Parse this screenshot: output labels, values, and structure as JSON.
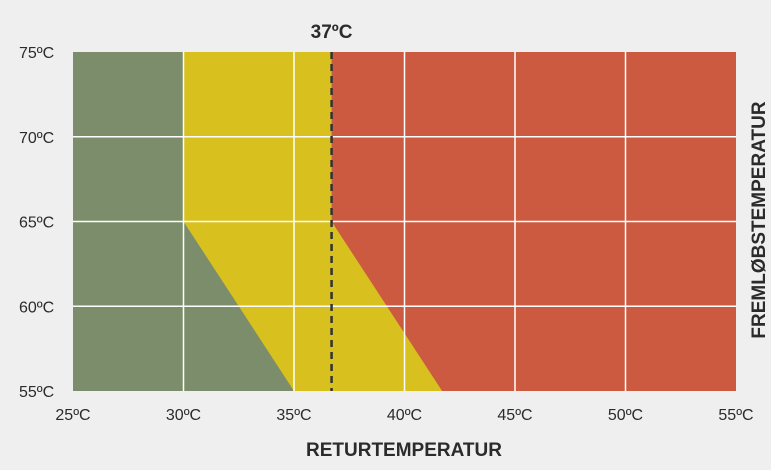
{
  "chart_data": {
    "type": "area",
    "title": "",
    "xlabel": "RETURTEMPERATUR",
    "ylabel": "FREMLØBSTEMPERATUR",
    "xlim": [
      25,
      55
    ],
    "ylim": [
      55,
      75
    ],
    "x_ticks": [
      25,
      30,
      35,
      40,
      45,
      50,
      55
    ],
    "y_ticks": [
      55,
      60,
      65,
      70,
      75
    ],
    "x_tick_labels": [
      "25ºC",
      "30ºC",
      "35ºC",
      "40ºC",
      "45ºC",
      "50ºC",
      "55ºC"
    ],
    "y_tick_labels": [
      "55ºC",
      "60ºC",
      "65ºC",
      "70ºC",
      "75ºC"
    ],
    "grid": true,
    "regions": [
      {
        "color": "#7b8d6b",
        "points": [
          [
            25,
            55
          ],
          [
            25,
            75
          ],
          [
            55,
            75
          ],
          [
            55,
            55
          ]
        ]
      },
      {
        "color": "#d8c11e",
        "points": [
          [
            30,
            75
          ],
          [
            30,
            65
          ],
          [
            35,
            55
          ],
          [
            55,
            55
          ],
          [
            55,
            75
          ]
        ]
      },
      {
        "color": "#cb5a41",
        "points": [
          [
            36.7,
            75
          ],
          [
            36.7,
            65
          ],
          [
            41.7,
            55
          ],
          [
            55,
            55
          ],
          [
            55,
            75
          ]
        ]
      }
    ],
    "reference_line": {
      "x": 36.7,
      "label": "37ºC",
      "style": "dashed",
      "color": "#333333"
    },
    "grid_color": "#ffffff"
  }
}
